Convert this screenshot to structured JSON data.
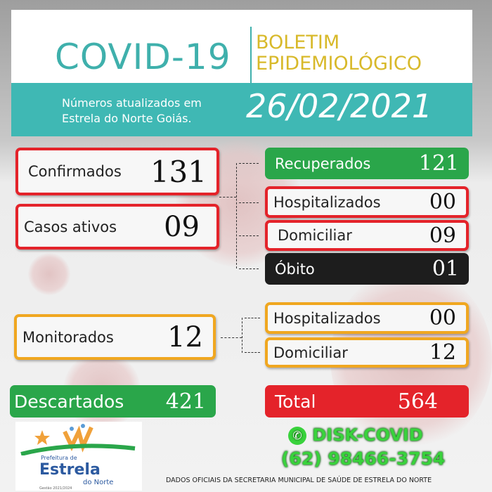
{
  "header": {
    "title": "COVID-19",
    "subtitle_line1": "BOLETIM",
    "subtitle_line2": "EPIDEMIOLÓGICO",
    "updated_line1": "Números atualizados em",
    "updated_line2": "Estrela do Norte Goiás.",
    "date": "26/02/2021"
  },
  "stats": {
    "confirmados": {
      "label": "Confirmados",
      "value": "131"
    },
    "casos_ativos": {
      "label": "Casos ativos",
      "value": "09"
    },
    "recuperados": {
      "label": "Recuperados",
      "value": "121"
    },
    "hospitalizados": {
      "label": "Hospitalizados",
      "value": "00"
    },
    "domiciliar": {
      "label": "Domiciliar",
      "value": "09"
    },
    "obito": {
      "label": "Óbito",
      "value": "01"
    },
    "monitorados": {
      "label": "Monitorados",
      "value": "12"
    },
    "mon_hospitalizados": {
      "label": "Hospitalizados",
      "value": "00"
    },
    "mon_domiciliar": {
      "label": "Domiciliar",
      "value": "12"
    },
    "descartados": {
      "label": "Descartados",
      "value": "421"
    },
    "total": {
      "label": "Total",
      "value": "564"
    }
  },
  "logo": {
    "line1": "Prefeitura de",
    "line2": "Estrela",
    "line3": "do Norte",
    "line4": "Gestão 2021/2024"
  },
  "contact": {
    "icon": "whatsapp-icon",
    "label": "DISK-COVID",
    "phone": "(62) 98466-3754"
  },
  "footer": "DADOS OFICIAIS DA SECRETARIA MUNICIPAL DE SAÚDE DE ESTRELA DO NORTE",
  "colors": {
    "teal": "#3fb8b4",
    "yellow": "#d8b92a",
    "red": "#e4232a",
    "green": "#2aa64a",
    "orange": "#f0a720",
    "black": "#1d1d1d"
  }
}
